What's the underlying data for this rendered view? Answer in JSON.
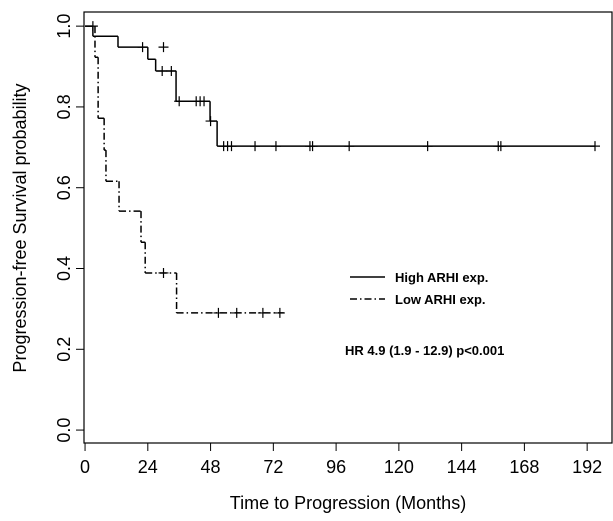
{
  "chart_data": {
    "type": "step",
    "x_label": "Time to Progression (Months)",
    "y_label": "Progression-free Survival probability",
    "annotation": "HR 4.9 (1.9 - 12.9) p<0.001",
    "xlim": [
      -0.4,
      201.5
    ],
    "ylim": [
      -0.032,
      1.035
    ],
    "xticks": [
      0,
      24,
      48,
      72,
      96,
      120,
      144,
      168,
      192
    ],
    "yticks": [
      {
        "value": 0,
        "label": "0.0"
      },
      {
        "value": 0.2,
        "label": "0.2"
      },
      {
        "value": 0.4,
        "label": "0.4"
      },
      {
        "value": 0.6,
        "label": "0.6"
      },
      {
        "value": 0.8,
        "label": "0.8"
      },
      {
        "value": 1,
        "label": "1.0"
      }
    ],
    "legend": "center-right",
    "series": [
      {
        "name": "High ARHI exp.",
        "color": "#000000",
        "dash": "solid",
        "x": [
          0,
          3,
          12.6,
          24,
          27,
          34.8,
          47.8,
          50.5,
          195
        ],
        "values": [
          1.0,
          0.975,
          0.948,
          0.918,
          0.889,
          0.814,
          0.765,
          0.703,
          0.703
        ],
        "censored_x": [
          22,
          30,
          29.5,
          33,
          36,
          42.5,
          44,
          45.5,
          48,
          53,
          54.5,
          56,
          65,
          73,
          86,
          87,
          101,
          131,
          158,
          159,
          195
        ],
        "censored_y": [
          0.948,
          0.948,
          0.889,
          0.889,
          0.814,
          0.814,
          0.814,
          0.814,
          0.765,
          0.703,
          0.703,
          0.703,
          0.703,
          0.703,
          0.703,
          0.703,
          0.703,
          0.703,
          0.703,
          0.703,
          0.703
        ]
      },
      {
        "name": "Low ARHI exp.",
        "color": "#000000",
        "dash": "dashdot",
        "x": [
          0,
          3.8,
          5,
          7.3,
          8,
          13,
          21.4,
          23,
          35,
          76
        ],
        "values": [
          1.0,
          0.923,
          0.772,
          0.693,
          0.616,
          0.542,
          0.465,
          0.389,
          0.29,
          0.29
        ],
        "censored_x": [
          3,
          30,
          51,
          58,
          68,
          74.5
        ],
        "censored_y": [
          1.0,
          0.389,
          0.29,
          0.29,
          0.29,
          0.29
        ]
      }
    ]
  }
}
